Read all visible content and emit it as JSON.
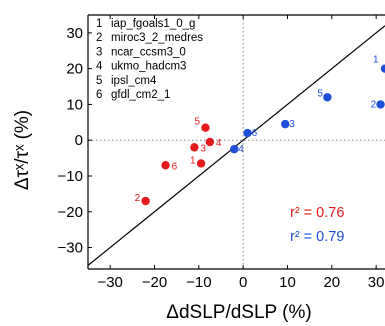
{
  "chart_data": {
    "type": "scatter",
    "title": "",
    "xlabel": "ΔdSLP/dSLP (%)",
    "ylabel": "Δτˣ/τˣ (%)",
    "xlim": [
      -35,
      32
    ],
    "ylim": [
      -36,
      35
    ],
    "xticks": [
      "−30",
      "−20",
      "−10",
      "0",
      "10",
      "20",
      "30"
    ],
    "xtick_values": [
      -30,
      -20,
      -10,
      0,
      10,
      20,
      30
    ],
    "yticks": [
      "−30",
      "−20",
      "−10",
      "0",
      "10",
      "20",
      "30"
    ],
    "ytick_values": [
      -30,
      -20,
      -10,
      0,
      10,
      20,
      30
    ],
    "grid": false,
    "reference_lines": [
      "x=0 dotted",
      "y=0 dotted",
      "y=x solid"
    ],
    "legend_position": "top-left",
    "legend": [
      {
        "num": "1",
        "name": "iap_fgoals1_0_g"
      },
      {
        "num": "2",
        "name": "miroc3_2_medres"
      },
      {
        "num": "3",
        "name": "ncar_ccsm3_0"
      },
      {
        "num": "4",
        "name": "ukmo_hadcm3"
      },
      {
        "num": "5",
        "name": "ipsl_cm4"
      },
      {
        "num": "6",
        "name": "gfdl_cm2_1"
      }
    ],
    "series": [
      {
        "color": "#e41a1c",
        "r2_text": "r² = 0.76",
        "points": [
          {
            "label": "1",
            "x": -9.5,
            "y": -6.5
          },
          {
            "label": "2",
            "x": -22,
            "y": -17
          },
          {
            "label": "3",
            "x": -11,
            "y": -2
          },
          {
            "label": "4",
            "x": -7.5,
            "y": -0.5
          },
          {
            "label": "5",
            "x": -8.5,
            "y": 3.5
          },
          {
            "label": "6",
            "x": -17.5,
            "y": -7
          }
        ]
      },
      {
        "color": "#1f4fd8",
        "r2_text": "r² = 0.79",
        "points": [
          {
            "label": "1",
            "x": 32,
            "y": 20
          },
          {
            "label": "2",
            "x": 31,
            "y": 10
          },
          {
            "label": "3",
            "x": 9.5,
            "y": 4.5
          },
          {
            "label": "4",
            "x": -2,
            "y": -2.5
          },
          {
            "label": "5",
            "x": 19,
            "y": 12
          },
          {
            "label": "6",
            "x": 1,
            "y": 2
          }
        ]
      }
    ]
  }
}
